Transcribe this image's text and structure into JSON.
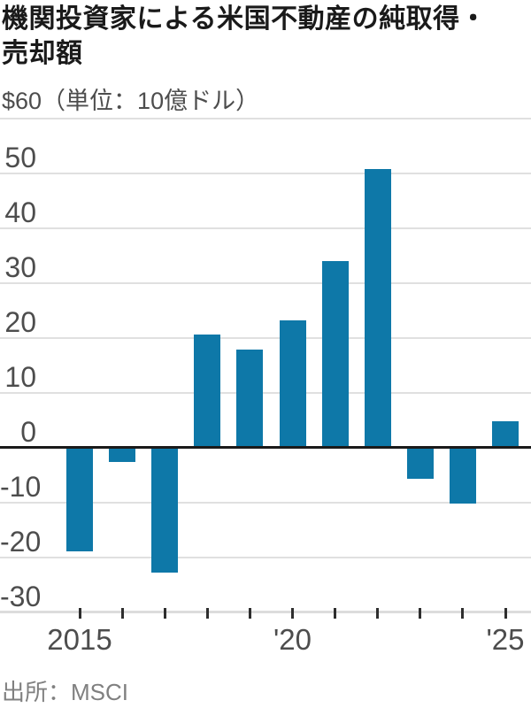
{
  "title": {
    "full": "機関投資家による米国不動産の純取得・売却額",
    "lines": [
      "機関投資家による米国不動産の純取得・",
      "売却額"
    ]
  },
  "y_axis_note": "$60（単位：10億ドル）",
  "source": "出所：MSCI",
  "colors": {
    "bar": "#0e78a8",
    "zero_line": "#1a1a1a",
    "gridline": "#e0e0e0",
    "baseline": "#dcdcdc",
    "tick": "#2e2e2e",
    "title_text": "#1a1a1a",
    "label_text": "#4d4d4d",
    "source_text": "#808080"
  },
  "chart_data": {
    "type": "bar",
    "title": "機関投資家による米国不動産の純取得・売却額",
    "unit_note": "単位：10億ドル",
    "xlabel": "",
    "ylabel": "10億ドル",
    "categories": [
      2015,
      2016,
      2017,
      2018,
      2019,
      2020,
      2021,
      2022,
      2023,
      2024,
      2025
    ],
    "values": [
      -19,
      -2.7,
      -22.8,
      20.5,
      17.8,
      23.2,
      33.9,
      50.8,
      -5.8,
      -10.2,
      4.7
    ],
    "x_tick_labels": [
      "2015",
      "",
      "",
      "",
      "",
      "'20",
      "",
      "",
      "",
      "",
      "'25"
    ],
    "y_ticks": [
      {
        "value": 60,
        "label": ""
      },
      {
        "value": 50,
        "label": "50"
      },
      {
        "value": 40,
        "label": "40"
      },
      {
        "value": 30,
        "label": "30"
      },
      {
        "value": 20,
        "label": "20"
      },
      {
        "value": 10,
        "label": "10"
      },
      {
        "value": 0,
        "label": "0"
      },
      {
        "value": -10,
        "label": "-10"
      },
      {
        "value": -20,
        "label": "-20"
      },
      {
        "value": -30,
        "label": "-30"
      }
    ],
    "ylim": [
      -30,
      60
    ],
    "grid": true,
    "legend": false,
    "bar_color": "#0e78a8"
  }
}
